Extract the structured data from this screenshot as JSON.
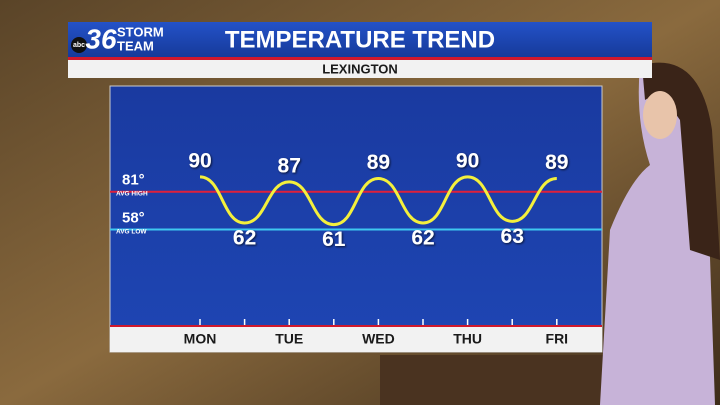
{
  "brand": {
    "network": "abc",
    "number": "36",
    "name_top": "STORM",
    "name_bottom": "TEAM"
  },
  "chart_data": {
    "type": "line",
    "title": "TEMPERATURE TREND",
    "subtitle": "LEXINGTON",
    "categories": [
      "MON",
      null,
      "TUE",
      null,
      "WED",
      null,
      "THU",
      null,
      "FRI"
    ],
    "values": [
      90,
      62,
      87,
      61,
      89,
      62,
      90,
      63,
      89
    ],
    "color": "#f4f03c",
    "ylim": [
      0,
      144
    ],
    "reference_lines": [
      {
        "value": 81,
        "label": "81°",
        "sublabel": "AVG HIGH",
        "color": "#e0203a"
      },
      {
        "value": 58,
        "label": "58°",
        "sublabel": "AVG LOW",
        "color": "#3ec8f0"
      }
    ]
  }
}
